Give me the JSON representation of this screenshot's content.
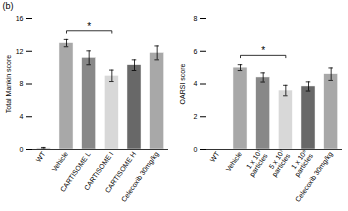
{
  "chart_data": [
    {
      "type": "bar",
      "categories": [
        "WT",
        "Vehicle",
        "CARTISOME L",
        "CARTISOME I",
        "CARTISOME H",
        "Celecoxib 30mg/kg"
      ],
      "values": [
        0.15,
        13.0,
        11.2,
        9.0,
        10.3,
        11.8
      ],
      "errors": [
        0.1,
        0.45,
        0.85,
        0.7,
        0.65,
        0.85
      ],
      "colors": [
        "#c8c8c8",
        "#a8a8a8",
        "#888888",
        "#d8d8d8",
        "#686868",
        "#a8a8a8"
      ],
      "ylabel": "Total Mankin score",
      "ylim": [
        0,
        16
      ],
      "yticks": [
        0,
        4,
        8,
        12,
        16
      ],
      "grid": false,
      "annotations": [
        {
          "text": "(b)"
        },
        {
          "text": "*",
          "x1": "Vehicle",
          "x2": "CARTISOME I",
          "y": 14.5
        }
      ]
    },
    {
      "type": "bar",
      "categories": [
        "WT",
        "Vehicle",
        "1 x 10⁷\nparticles",
        "5 x 10⁷\nparticles",
        "1 x 10⁸\nparticles",
        "Celecoxib 30mg/kg"
      ],
      "values": [
        0.0,
        5.0,
        4.4,
        3.6,
        3.85,
        4.6
      ],
      "errors": [
        0.0,
        0.18,
        0.28,
        0.32,
        0.28,
        0.38
      ],
      "colors": [
        "#c8c8c8",
        "#a8a8a8",
        "#888888",
        "#d8d8d8",
        "#686868",
        "#a8a8a8"
      ],
      "ylabel": "OARSI score",
      "ylim": [
        0,
        8
      ],
      "yticks": [
        0,
        2,
        4,
        6,
        8
      ],
      "grid": false,
      "annotations": [
        {
          "text": "*",
          "x1": "Vehicle",
          "x2": "5 x 10⁷\nparticles",
          "y": 5.75
        }
      ]
    }
  ]
}
